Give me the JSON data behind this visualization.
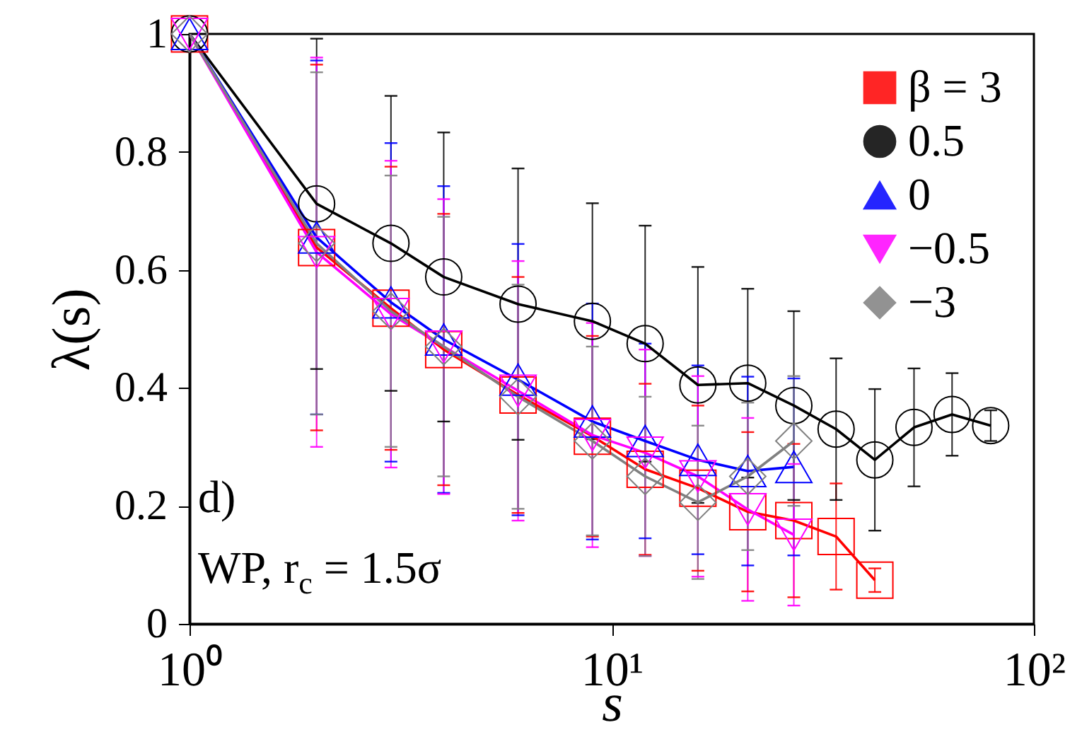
{
  "chart_data": {
    "type": "line",
    "xlabel": "s",
    "ylabel": "λ(s)",
    "log": "x",
    "xlim": [
      1,
      100
    ],
    "xticks": [
      {
        "value": 1,
        "label": "10⁰"
      },
      {
        "value": 10,
        "label": "10¹"
      },
      {
        "value": 100,
        "label": "10²"
      }
    ],
    "ylim": [
      0,
      1
    ],
    "yticks": [
      0,
      0.2,
      0.4,
      0.6,
      0.8,
      1
    ],
    "grid": false,
    "legend": "top right",
    "annotations": [
      "d)",
      "WP,  r$_{c}$ = 1.5σ"
    ],
    "x": [
      1,
      2,
      3,
      4,
      6,
      9,
      12,
      16,
      21,
      27,
      34,
      42,
      52,
      64,
      79
    ],
    "series": [
      {
        "name": "β = 3",
        "color": "#ff0000",
        "marker": "square",
        "values": [
          1,
          0.638,
          0.535,
          0.465,
          0.388,
          0.318,
          0.262,
          0.23,
          0.19,
          0.175,
          0.148,
          0.074,
          null,
          null,
          null
        ],
        "errors": [
          null,
          0.31,
          0.24,
          0.23,
          0.2,
          0.17,
          0.145,
          0.14,
          0.135,
          0.13,
          0.09,
          0.02,
          null,
          null,
          null
        ]
      },
      {
        "name": "0.5",
        "color": "#000000",
        "marker": "circle",
        "values": [
          1,
          0.712,
          0.645,
          0.588,
          0.542,
          0.513,
          0.475,
          0.405,
          0.408,
          0.37,
          0.33,
          0.278,
          0.333,
          0.355,
          0.336
        ],
        "errors": [
          null,
          0.28,
          0.25,
          0.245,
          0.23,
          0.2,
          0.2,
          0.2,
          0.16,
          0.16,
          0.12,
          0.12,
          0.1,
          0.07,
          0.026
        ]
      },
      {
        "name": "0",
        "color": "#0000ff",
        "marker": "triangle",
        "values": [
          1,
          0.655,
          0.545,
          0.482,
          0.414,
          0.343,
          0.31,
          0.278,
          0.259,
          0.266,
          null,
          null,
          null,
          null,
          null
        ],
        "errors": [
          null,
          0.3,
          0.27,
          0.26,
          0.23,
          0.2,
          0.165,
          0.16,
          0.16,
          0.15,
          null,
          null,
          null,
          null,
          null
        ]
      },
      {
        "name": "−0.5",
        "color": "#ff00ff",
        "marker": "triangle-down",
        "values": [
          1,
          0.63,
          0.525,
          0.47,
          0.395,
          0.32,
          0.29,
          0.25,
          0.194,
          0.151,
          null,
          null,
          null,
          null,
          null
        ],
        "errors": [
          null,
          0.33,
          0.26,
          0.25,
          0.22,
          0.19,
          0.175,
          0.17,
          0.155,
          0.12,
          null,
          null,
          null,
          null,
          null
        ]
      },
      {
        "name": "−3",
        "color": "#808080",
        "marker": "diamond",
        "values": [
          1,
          0.645,
          0.53,
          0.47,
          0.385,
          0.31,
          0.25,
          0.206,
          0.25,
          0.31,
          null,
          null,
          null,
          null,
          null
        ],
        "errors": [
          null,
          0.29,
          0.23,
          0.22,
          0.19,
          0.16,
          0.135,
          0.13,
          0.125,
          0.11,
          null,
          null,
          null,
          null,
          null
        ]
      }
    ]
  }
}
